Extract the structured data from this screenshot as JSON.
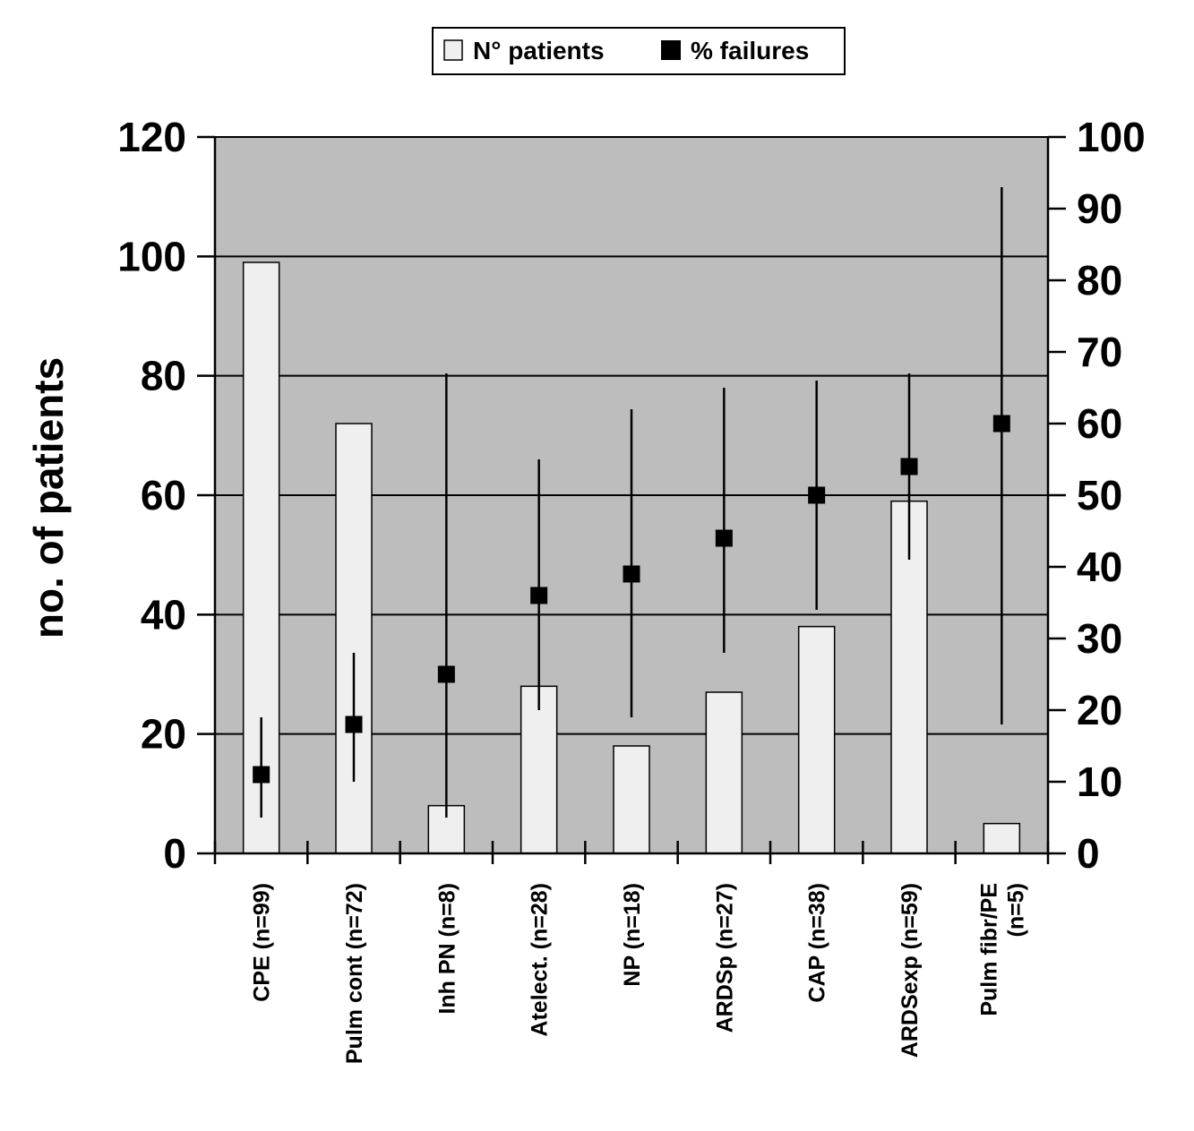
{
  "chart_data": {
    "type": "bar",
    "categories": [
      [
        "CPE (n=99)"
      ],
      [
        "Pulm cont (n=72)"
      ],
      [
        "Inh PN (n=8)"
      ],
      [
        "Atelect. (n=28)"
      ],
      [
        "NP (n=18)"
      ],
      [
        "ARDSp (n=27)"
      ],
      [
        "CAP (n=38)"
      ],
      [
        "ARDSexp (n=59)"
      ],
      [
        "Pulm fibr/PE",
        "(n=5)"
      ]
    ],
    "series": [
      {
        "name": "N° patients",
        "type": "bar",
        "axis": "left",
        "color": "#efefef",
        "values": [
          99,
          72,
          8,
          28,
          18,
          27,
          38,
          59,
          5
        ]
      },
      {
        "name": "% failures",
        "type": "scatter",
        "axis": "right",
        "color": "#000000",
        "values": [
          11,
          18,
          25,
          36,
          39,
          44,
          50,
          54,
          60
        ],
        "error_low": [
          5,
          10,
          5,
          20,
          19,
          28,
          34,
          41,
          18
        ],
        "error_high": [
          19,
          28,
          67,
          55,
          62,
          65,
          66,
          67,
          93
        ]
      }
    ],
    "ylabel": "no. of patients",
    "y2label": "",
    "ylim": [
      0,
      120
    ],
    "y2lim": [
      0,
      100
    ],
    "yticks": [
      0,
      20,
      40,
      60,
      80,
      100,
      120
    ],
    "y2ticks": [
      0,
      10,
      20,
      30,
      40,
      50,
      60,
      70,
      80,
      90,
      100
    ],
    "grid": true,
    "plot_background": "#bdbdbd",
    "legend_position": "top-center"
  }
}
